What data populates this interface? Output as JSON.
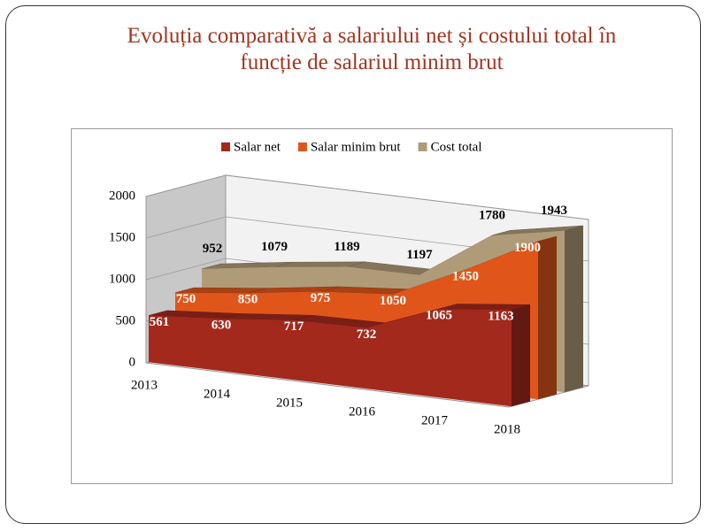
{
  "chart_data": {
    "type": "area3d",
    "title": "Evoluția comparativă a salariului net și costului total în funcție de salariul minim brut",
    "categories": [
      "2013",
      "2014",
      "2015",
      "2016",
      "2017",
      "2018"
    ],
    "series": [
      {
        "name": "Salar net",
        "color": "#a3291d",
        "values": [
          561,
          630,
          717,
          732,
          1065,
          1163
        ]
      },
      {
        "name": "Salar minim brut",
        "color": "#e0561a",
        "values": [
          750,
          850,
          975,
          1050,
          1450,
          1900
        ]
      },
      {
        "name": "Cost total",
        "color": "#b09b78",
        "values": [
          952,
          1079,
          1189,
          1197,
          1780,
          1943
        ]
      }
    ],
    "ylim": [
      0,
      2000
    ],
    "yticks": [
      0,
      500,
      1000,
      1500,
      2000
    ],
    "grid": true,
    "legend": "top"
  }
}
